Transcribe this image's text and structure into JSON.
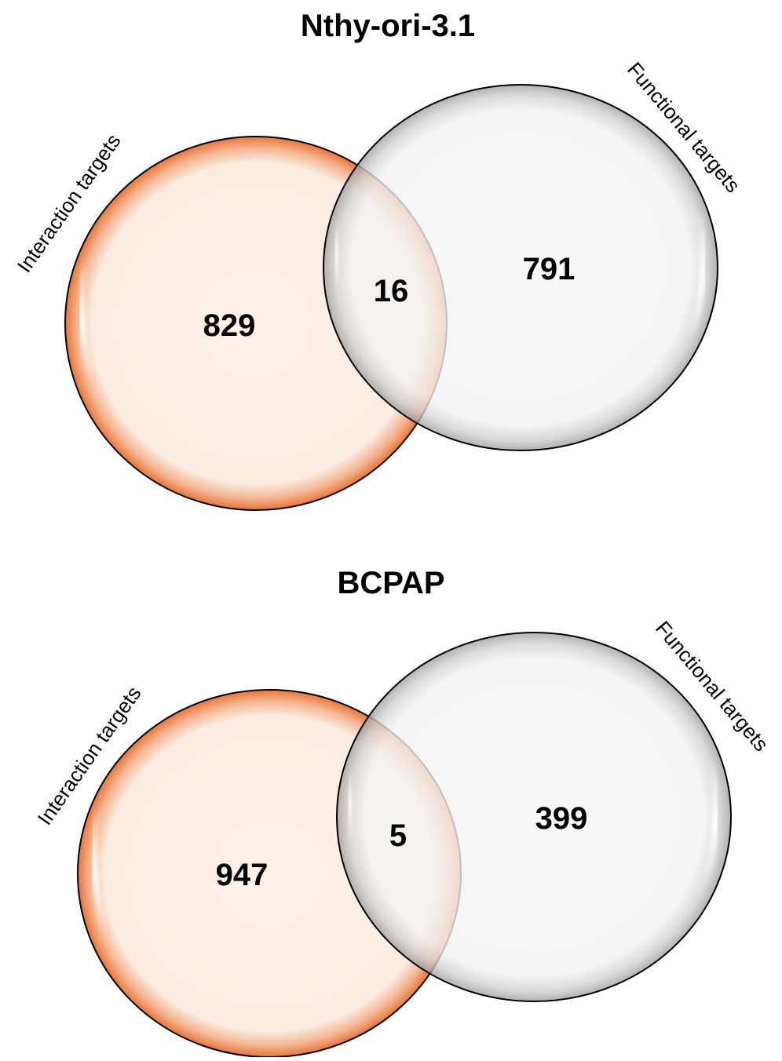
{
  "colors": {
    "interaction_fill": "#fdf0e7",
    "interaction_rim": "#ec8550",
    "functional_fill": "#f4f4f4",
    "functional_rim": "#a9a9a9",
    "outline": "#000000"
  },
  "panels": [
    {
      "title": "Nthy-ori-3.1",
      "left_set": {
        "label": "Interaction targets",
        "only_count": "829"
      },
      "right_set": {
        "label": "Functional targets",
        "only_count": "791"
      },
      "overlap_count": "16"
    },
    {
      "title": "BCPAP",
      "left_set": {
        "label": "Interaction targets",
        "only_count": "947"
      },
      "right_set": {
        "label": "Functional targets",
        "only_count": "399"
      },
      "overlap_count": "5"
    }
  ]
}
